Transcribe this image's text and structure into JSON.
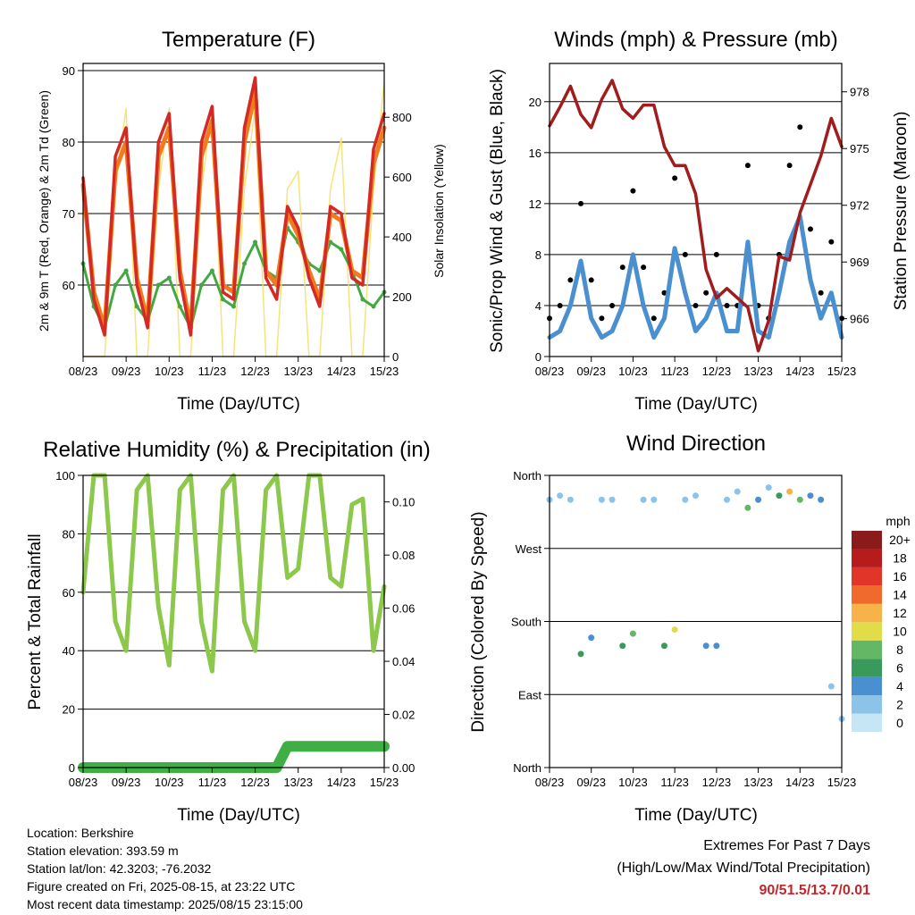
{
  "x_ticks": [
    "08/23",
    "09/23",
    "10/23",
    "11/23",
    "12/23",
    "13/23",
    "14/23",
    "15/23"
  ],
  "xlabel": "Time (Day/UTC)",
  "panels": {
    "temperature": {
      "title": "Temperature (F)",
      "ylabel_left": "2m & 9m T (Red, Orange) & 2m Td (Green)",
      "ylabel_right": "Solar Insolation (Yellow)",
      "yticks_left": [
        "60",
        "70",
        "80",
        "90"
      ],
      "yticks_right": [
        "0",
        "200",
        "400",
        "600",
        "800"
      ]
    },
    "winds": {
      "title": "Winds (mph) & Pressure (mb)",
      "ylabel_left": "Sonic/Prop Wind & Gust (Blue, Black)",
      "ylabel_right": "Station Pressure (Maroon)",
      "yticks_left": [
        "0",
        "4",
        "8",
        "12",
        "16",
        "20"
      ],
      "yticks_right": [
        "966",
        "969",
        "972",
        "975",
        "978"
      ]
    },
    "humidity": {
      "title": "Relative Humidity (%) & Precipitation (in)",
      "ylabel_left": "Percent & Total Rainfall",
      "yticks_left": [
        "0",
        "20",
        "40",
        "60",
        "80",
        "100"
      ],
      "yticks_right": [
        "0.00",
        "0.02",
        "0.04",
        "0.06",
        "0.08",
        "0.10"
      ]
    },
    "direction": {
      "title": "Wind Direction",
      "ylabel_left": "Direction (Colored By Speed)",
      "yticks_left": [
        "North",
        "East",
        "South",
        "West",
        "North"
      ],
      "colorbar_title": "mph",
      "colorbar_labels": [
        "20+",
        "18",
        "16",
        "14",
        "12",
        "10",
        "8",
        "6",
        "4",
        "2",
        "0"
      ]
    }
  },
  "info": {
    "location": "Location: Berkshire",
    "elevation": "Station elevation: 393.59 m",
    "latlon": "Station lat/lon: 42.3203; -76.2032",
    "created": "Figure created on Fri, 2025-08-15, at 23:22 UTC",
    "recent": "Most recent data timestamp: 2025/08/15 23:15:00"
  },
  "extremes": {
    "line1": "Extremes For Past 7 Days",
    "line2": "(High/Low/Max Wind/Total Precipitation)",
    "value": "90/51.5/13.7/0.01"
  },
  "colors": {
    "temp_2m": "#d42a25",
    "temp_9m": "#f07a1e",
    "dewpoint": "#43a843",
    "solar": "#f5e06a",
    "gust": "#000000",
    "wind": "#4a8fd0",
    "pressure": "#a11c1c",
    "rh": "#8cc84b",
    "precip": "#3fae44",
    "speed_scale": [
      "#c6e6f5",
      "#8cc3e8",
      "#4a8fd0",
      "#3a9a5c",
      "#63b765",
      "#e1dc4a",
      "#f8b24a",
      "#f06a2c",
      "#e1352a",
      "#b71c1c",
      "#8b1a1a"
    ]
  },
  "chart_data": [
    {
      "type": "line",
      "title": "Temperature (F)",
      "xlabel": "Time (Day/UTC)",
      "ylabel": "2m & 9m T (Red, Orange) & 2m Td (Green)",
      "ylim": [
        50,
        91
      ],
      "y2label": "Solar Insolation (Yellow)",
      "y2lim": [
        0,
        980
      ],
      "x": [
        8.0,
        8.25,
        8.5,
        8.75,
        9.0,
        9.25,
        9.5,
        9.75,
        10.0,
        10.25,
        10.5,
        10.75,
        11.0,
        11.25,
        11.5,
        11.75,
        12.0,
        12.25,
        12.5,
        12.75,
        13.0,
        13.25,
        13.5,
        13.75,
        14.0,
        14.25,
        14.5,
        14.75,
        15.0
      ],
      "series": [
        {
          "name": "2m T",
          "values": [
            75,
            58,
            53,
            78,
            82,
            60,
            54,
            80,
            84,
            61,
            53,
            80,
            85,
            59,
            58,
            82,
            89,
            61,
            58,
            71,
            68,
            61,
            57,
            71,
            70,
            61,
            60,
            79,
            84
          ]
        },
        {
          "name": "9m T",
          "values": [
            74,
            59,
            54,
            76,
            80,
            61,
            55,
            78,
            82,
            62,
            54,
            78,
            83,
            60,
            59,
            80,
            87,
            62,
            60,
            70,
            67,
            62,
            58,
            70,
            69,
            62,
            61,
            77,
            82
          ]
        },
        {
          "name": "2m Td",
          "values": [
            63,
            57,
            54,
            60,
            62,
            57,
            55,
            60,
            61,
            57,
            54,
            60,
            62,
            58,
            57,
            63,
            66,
            62,
            61,
            68,
            66,
            63,
            62,
            66,
            65,
            62,
            58,
            57,
            59
          ]
        },
        {
          "name": "Solar",
          "values": [
            0,
            0,
            0,
            560,
            830,
            0,
            0,
            560,
            830,
            0,
            0,
            560,
            830,
            0,
            0,
            560,
            830,
            0,
            0,
            560,
            620,
            0,
            0,
            560,
            730,
            0,
            0,
            560,
            920
          ]
        }
      ]
    },
    {
      "type": "line",
      "title": "Winds (mph) & Pressure (mb)",
      "xlabel": "Time (Day/UTC)",
      "ylabel": "Sonic/Prop Wind & Gust (Blue, Black)",
      "ylim": [
        0,
        23
      ],
      "y2label": "Station Pressure (Maroon)",
      "y2lim": [
        964,
        979.5
      ],
      "x": [
        8.0,
        8.25,
        8.5,
        8.75,
        9.0,
        9.25,
        9.5,
        9.75,
        10.0,
        10.25,
        10.5,
        10.75,
        11.0,
        11.25,
        11.5,
        11.75,
        12.0,
        12.25,
        12.5,
        12.75,
        13.0,
        13.25,
        13.5,
        13.75,
        14.0,
        14.25,
        14.5,
        14.75,
        15.0
      ],
      "series": [
        {
          "name": "Gust",
          "values": [
            3,
            4,
            6,
            12,
            6,
            3,
            4,
            7,
            13,
            7,
            3,
            5,
            14,
            8,
            4,
            5,
            8,
            4,
            4,
            15,
            4,
            3,
            8,
            15,
            18,
            10,
            5,
            9,
            3
          ]
        },
        {
          "name": "Wind",
          "values": [
            1.5,
            2,
            4,
            7.5,
            3,
            1.5,
            2,
            4,
            8,
            4,
            1.5,
            3,
            8.5,
            5,
            2,
            3,
            5,
            2,
            2,
            9,
            2,
            1.5,
            5,
            9,
            11,
            6,
            3,
            5,
            1.5
          ]
        },
        {
          "name": "Pressure",
          "values": [
            976.2,
            977.2,
            978.3,
            976.8,
            976.1,
            977.6,
            978.6,
            977.1,
            976.6,
            977.3,
            977.3,
            975.1,
            974.1,
            974.1,
            972.6,
            968.6,
            967.1,
            967.6,
            967.1,
            966.6,
            964.3,
            965.9,
            969.3,
            969.1,
            971.6,
            973.1,
            974.6,
            976.6,
            975.1
          ]
        }
      ]
    },
    {
      "type": "line",
      "title": "Relative Humidity (%) & Precipitation (in)",
      "xlabel": "Time (Day/UTC)",
      "ylabel": "Percent & Total Rainfall",
      "ylim": [
        0,
        100
      ],
      "y2lim": [
        0,
        0.11
      ],
      "x": [
        8.0,
        8.25,
        8.5,
        8.75,
        9.0,
        9.25,
        9.5,
        9.75,
        10.0,
        10.25,
        10.5,
        10.75,
        11.0,
        11.25,
        11.5,
        11.75,
        12.0,
        12.25,
        12.5,
        12.75,
        13.0,
        13.25,
        13.5,
        13.75,
        14.0,
        14.25,
        14.5,
        14.75,
        15.0
      ],
      "series": [
        {
          "name": "RH",
          "values": [
            60,
            100,
            100,
            50,
            40,
            95,
            100,
            55,
            35,
            95,
            100,
            50,
            33,
            95,
            100,
            50,
            40,
            95,
            100,
            65,
            68,
            100,
            100,
            65,
            62,
            90,
            92,
            40,
            62
          ]
        },
        {
          "name": "Precipitation",
          "values": [
            0,
            0,
            0,
            0,
            0,
            0,
            0,
            0,
            0,
            0,
            0,
            0,
            0,
            0,
            0,
            0,
            0,
            0,
            0,
            0.008,
            0.008,
            0.008,
            0.008,
            0.008,
            0.008,
            0.008,
            0.008,
            0.008,
            0.008
          ]
        }
      ]
    },
    {
      "type": "scatter",
      "title": "Wind Direction",
      "xlabel": "Time (Day/UTC)",
      "ylabel": "Direction (Colored By Speed)",
      "ylim": [
        0,
        360
      ],
      "yticks": [
        "North",
        "East",
        "South",
        "West",
        "North"
      ],
      "x": [
        8.0,
        8.25,
        8.5,
        8.75,
        9.0,
        9.25,
        9.5,
        9.75,
        10.0,
        10.25,
        10.5,
        10.75,
        11.0,
        11.25,
        11.5,
        11.75,
        12.0,
        12.25,
        12.5,
        12.75,
        13.0,
        13.25,
        13.5,
        13.75,
        14.0,
        14.25,
        14.5,
        14.75,
        15.0
      ],
      "series": [
        {
          "name": "Direction",
          "values": [
            330,
            335,
            330,
            140,
            160,
            330,
            330,
            150,
            165,
            330,
            330,
            150,
            170,
            330,
            335,
            150,
            150,
            330,
            340,
            320,
            330,
            345,
            335,
            340,
            330,
            335,
            330,
            100,
            60
          ]
        },
        {
          "name": "Speed",
          "values": [
            2,
            3,
            3,
            6,
            5,
            2,
            3,
            6,
            8,
            3,
            2,
            7,
            10,
            3,
            2,
            4,
            5,
            2,
            3,
            9,
            4,
            3,
            6,
            12,
            8,
            5,
            4,
            3,
            2
          ]
        }
      ]
    }
  ]
}
